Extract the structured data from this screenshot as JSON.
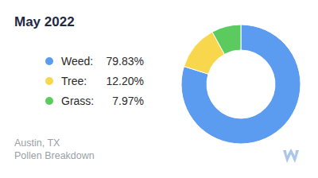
{
  "chart_data": {
    "type": "donut",
    "title": "May 2022",
    "categories": [
      "Weed:",
      "Tree:",
      "Grass:"
    ],
    "values": [
      79.83,
      12.2,
      7.97
    ],
    "value_labels": [
      "79.83%",
      "12.20%",
      "7.97%"
    ],
    "colors": [
      "#5b9cf0",
      "#f8d74c",
      "#5ccb5f"
    ],
    "legend": "left",
    "annotations": [
      "Austin, TX",
      "Pollen Breakdown"
    ]
  }
}
